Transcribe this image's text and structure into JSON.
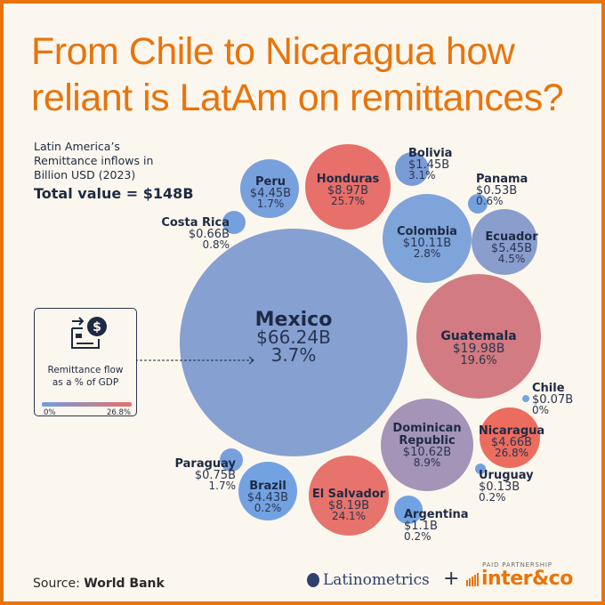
{
  "title": "From Chile to Nicaragua how reliant is LatAm on remittances?",
  "subtitle_lines": [
    "Latin America’s",
    "Remittance inflows in",
    "Billion USD (2023)"
  ],
  "total_value": "Total value = $148B",
  "legend": {
    "title_lines": [
      "Remittance flow",
      "as a % of GDP"
    ],
    "min_label": "0%",
    "max_label": "26.8%",
    "icon": "money-transfer-card-icon"
  },
  "source": {
    "prefix": "Source: ",
    "name": "World Bank"
  },
  "brands": {
    "latinometrics": "Latinometrics",
    "plus": "+",
    "paid": "PAID PARTNERSHIP",
    "inter": "inter&co"
  },
  "colors": {
    "accent": "#e8740c",
    "low": "#6f9ee2",
    "high": "#e8706a",
    "background": "#fcf7ee",
    "text": "#1e2a44"
  },
  "chart_data": {
    "type": "bubble",
    "title": "Latin America’s Remittance inflows in Billion USD (2023)",
    "size_metric": "Remittance inflows (Billion USD)",
    "color_metric": "Remittance flow as a % of GDP",
    "color_range": [
      0,
      26.8
    ],
    "bubbles": [
      {
        "country": "Mexico",
        "value": 66.24,
        "value_label": "$66.24B",
        "gdp_pct": 3.7,
        "gdp_label": "3.7%",
        "color": "#86a0d2"
      },
      {
        "country": "Guatemala",
        "value": 19.98,
        "value_label": "$19.98B",
        "gdp_pct": 19.6,
        "gdp_label": "19.6%",
        "color": "#d27b82"
      },
      {
        "country": "Dominican Republic",
        "value": 10.62,
        "value_label": "$10.62B",
        "gdp_pct": 8.9,
        "gdp_label": "8.9%",
        "color": "#a494b8"
      },
      {
        "country": "Colombia",
        "value": 10.11,
        "value_label": "$10.11B",
        "gdp_pct": 2.8,
        "gdp_label": "2.8%",
        "color": "#7ea4da"
      },
      {
        "country": "Honduras",
        "value": 8.97,
        "value_label": "$8.97B",
        "gdp_pct": 25.7,
        "gdp_label": "25.7%",
        "color": "#e8706a"
      },
      {
        "country": "El Salvador",
        "value": 8.19,
        "value_label": "$8.19B",
        "gdp_pct": 24.1,
        "gdp_label": "24.1%",
        "color": "#e6736c"
      },
      {
        "country": "Ecuador",
        "value": 5.45,
        "value_label": "$5.45B",
        "gdp_pct": 4.5,
        "gdp_label": "4.5%",
        "color": "#8a9ece"
      },
      {
        "country": "Nicaragua",
        "value": 4.66,
        "value_label": "$4.66B",
        "gdp_pct": 26.8,
        "gdp_label": "26.8%",
        "color": "#ec6c5e"
      },
      {
        "country": "Peru",
        "value": 4.45,
        "value_label": "$4.45B",
        "gdp_pct": 1.7,
        "gdp_label": "1.7%",
        "color": "#78a0dc"
      },
      {
        "country": "Brazil",
        "value": 4.43,
        "value_label": "$4.43B",
        "gdp_pct": 0.2,
        "gdp_label": "0.2%",
        "color": "#72a2e2"
      },
      {
        "country": "Bolivia",
        "value": 1.45,
        "value_label": "$1.45B",
        "gdp_pct": 3.1,
        "gdp_label": "3.1%",
        "color": "#7a9cd6"
      },
      {
        "country": "Argentina",
        "value": 1.1,
        "value_label": "$1.1B",
        "gdp_pct": 0.2,
        "gdp_label": "0.2%",
        "color": "#72a2e2"
      },
      {
        "country": "Paraguay",
        "value": 0.75,
        "value_label": "$0.75B",
        "gdp_pct": 1.7,
        "gdp_label": "1.7%",
        "color": "#78a0dc"
      },
      {
        "country": "Costa Rica",
        "value": 0.66,
        "value_label": "$0.66B",
        "gdp_pct": 0.8,
        "gdp_label": "0.8%",
        "color": "#74a0de"
      },
      {
        "country": "Panama",
        "value": 0.53,
        "value_label": "$0.53B",
        "gdp_pct": 0.6,
        "gdp_label": "0.6%",
        "color": "#74a0de"
      },
      {
        "country": "Uruguay",
        "value": 0.13,
        "value_label": "$0.13B",
        "gdp_pct": 0.2,
        "gdp_label": "0.2%",
        "color": "#72a2e2"
      },
      {
        "country": "Chile",
        "value": 0.07,
        "value_label": "$0.07B",
        "gdp_pct": 0,
        "gdp_label": "0%",
        "color": "#72a6e4"
      }
    ]
  }
}
